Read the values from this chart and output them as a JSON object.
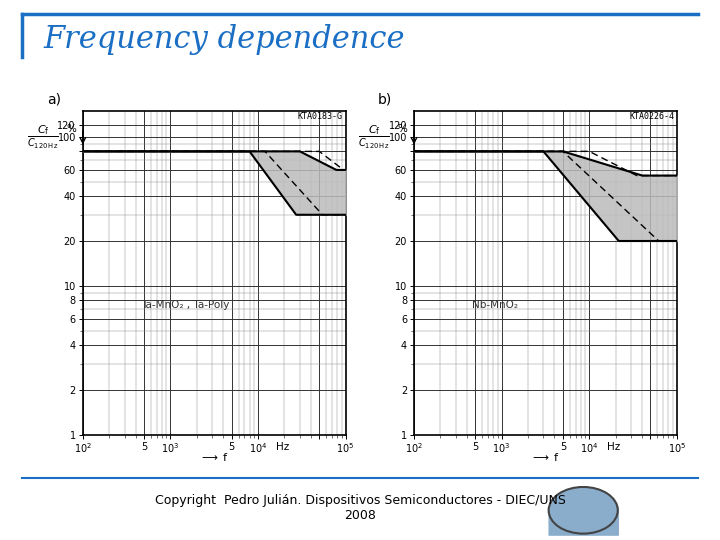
{
  "title": "Frequency dependence",
  "title_color": "#1a6fc4",
  "title_fontsize": 22,
  "subtitle": "Copyright  Pedro Julián. Dispositivos Semiconductores - DIEC/UNS\n2008",
  "subtitle_fontsize": 9,
  "bg_color": "#ffffff",
  "border_color": "#1a6fc4",
  "panel_a_label": "a)",
  "panel_b_label": "b)",
  "panel_a_tag": "KTA0183-G",
  "panel_b_tag": "KTA0226-4",
  "panel_a_material": "Ta-MnO₂ , Ta-Poly",
  "panel_b_material": "Nb-MnO₂",
  "fill_color": "#bbbbbb",
  "line_color": "#000000"
}
